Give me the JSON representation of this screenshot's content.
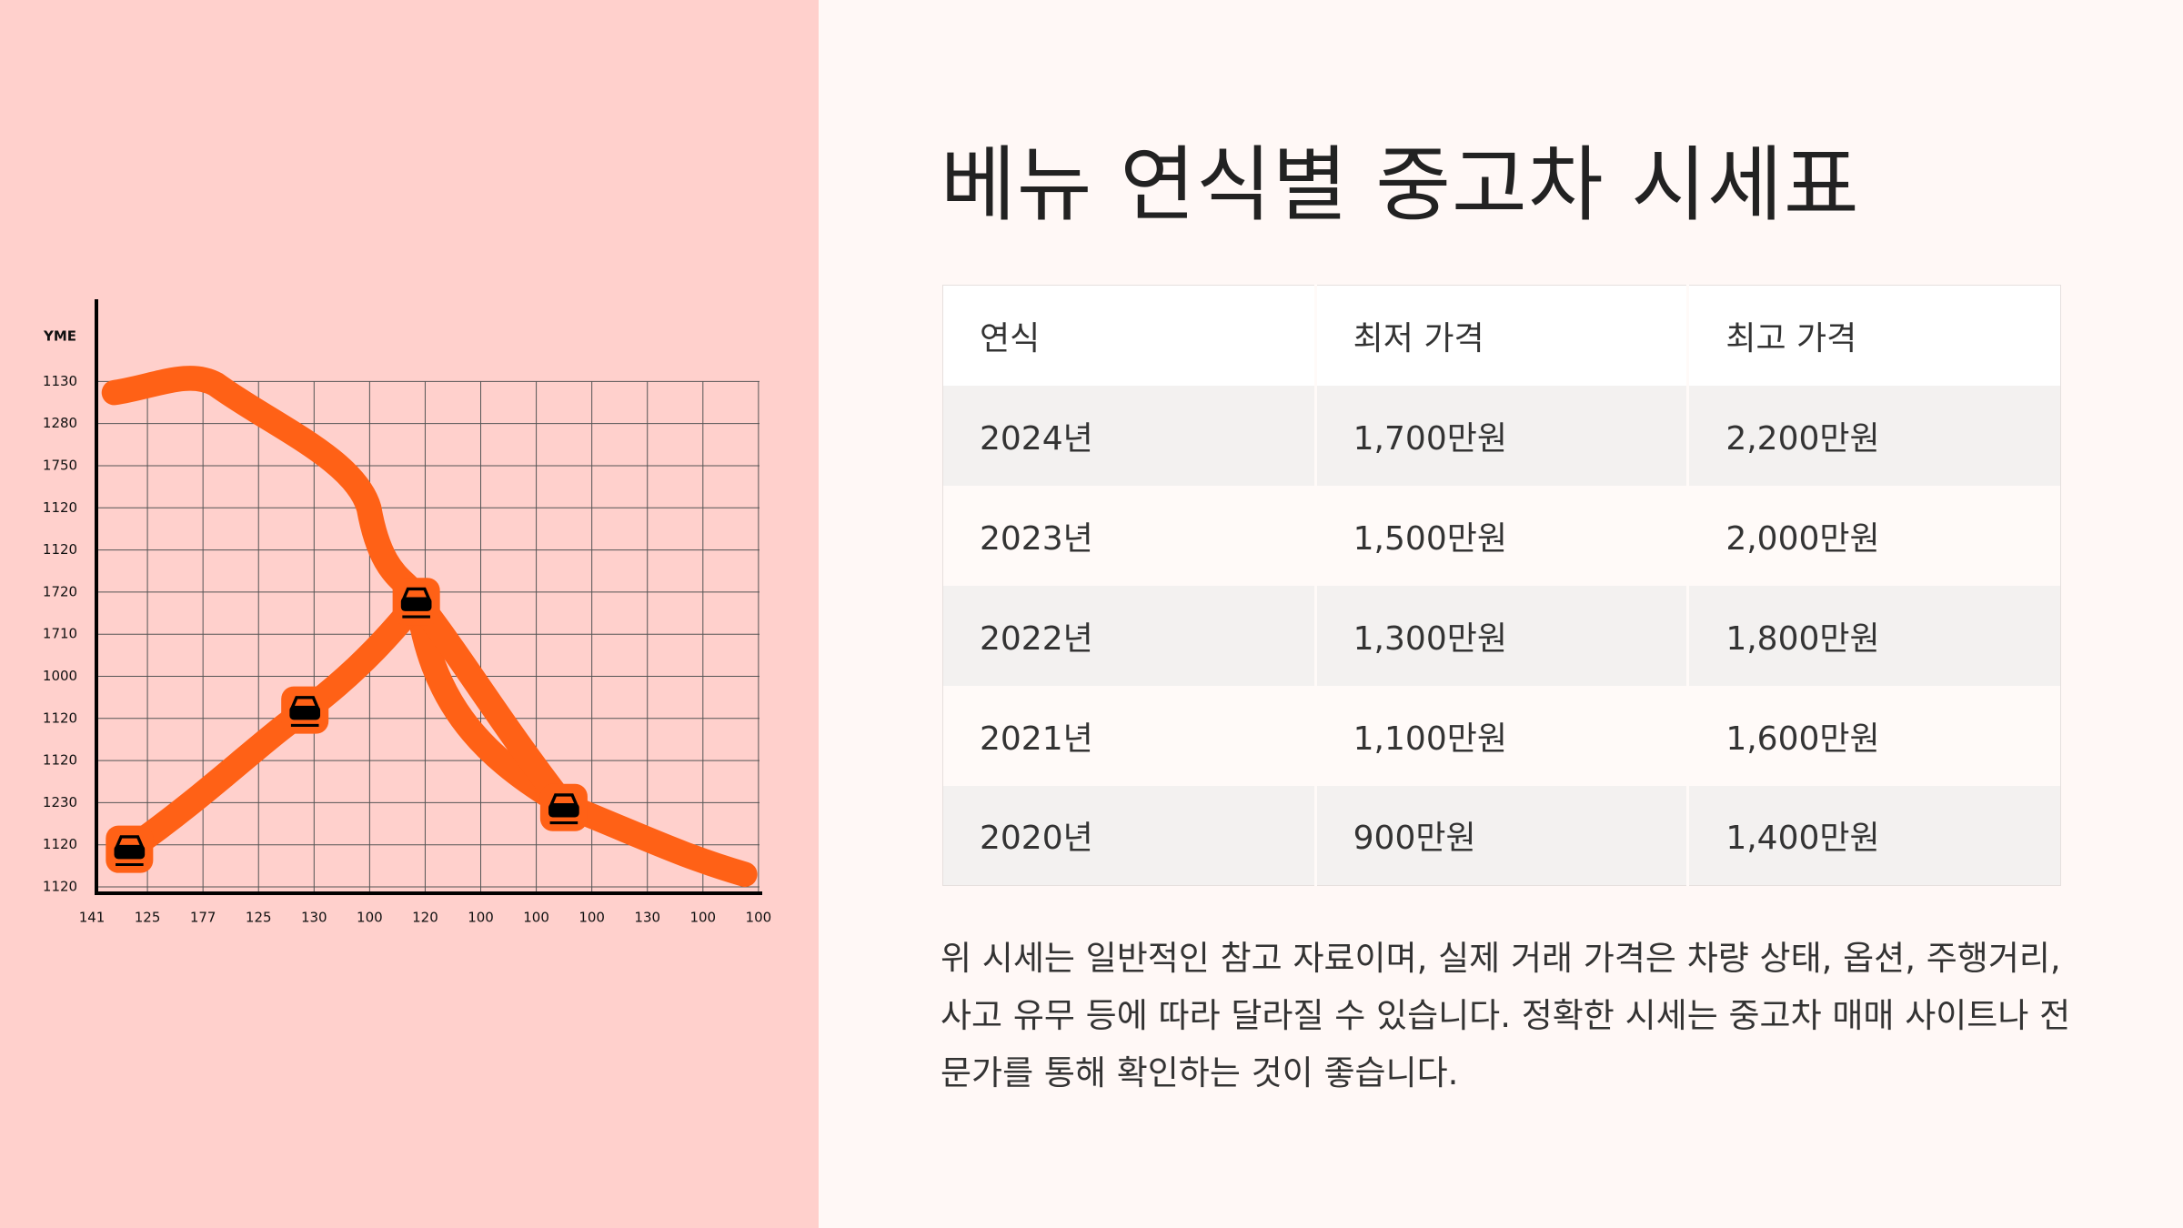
{
  "title": "베뉴 연식별 중고차 시세표",
  "table": {
    "header": [
      "연식",
      "최저 가격",
      "최고 가격"
    ],
    "rows": [
      [
        "2024년",
        "1,700만원",
        "2,200만원"
      ],
      [
        "2023년",
        "1,500만원",
        "2,000만원"
      ],
      [
        "2022년",
        "1,300만원",
        "1,800만원"
      ],
      [
        "2021년",
        "1,100만원",
        "1,600만원"
      ],
      [
        "2020년",
        "900만원",
        "1,400만원"
      ]
    ]
  },
  "note": "위 시세는 일반적인 참고 자료이며, 실제 거래 가격은 차량 상태, 옵션, 주행거리, 사고 유무 등에 따라 달라질 수 있습니다. 정확한 시세는 중고차 매매 사이트나 전문가를 통해 확인하는 것이 좋습니다.",
  "illustration": {
    "y_title": "YME",
    "y_labels": [
      "1130",
      "1280",
      "1750",
      "1120",
      "1120",
      "1720",
      "1710",
      "1000",
      "1120",
      "1120",
      "1230",
      "1120",
      "1120"
    ],
    "x_labels": [
      "141",
      "125",
      "177",
      "125",
      "130",
      "100",
      "120",
      "100",
      "100",
      "100",
      "130",
      "100",
      "100"
    ]
  }
}
